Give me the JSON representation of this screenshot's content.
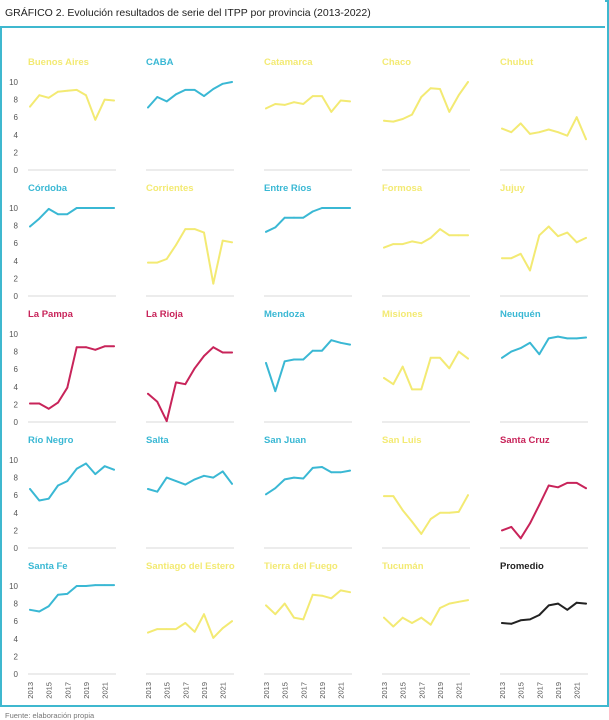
{
  "figure": {
    "title": "GRÁFICO 2. Evolución resultados de serie del ITPP por provincia (2013-2022)",
    "source": "Fuente: elaboración propia"
  },
  "colors": {
    "cyan": "#3ab8d4",
    "yellow": "#f3ea73",
    "magenta": "#c8245a",
    "black": "#222222",
    "frame": "#3fb8cf"
  },
  "chart_data": {
    "type": "line",
    "layout": "small-multiples",
    "rows": 5,
    "cols": 5,
    "ylim": [
      0,
      10
    ],
    "yticks": [
      "10",
      "8",
      "6",
      "4",
      "2",
      "0"
    ],
    "x": [
      2013,
      2014,
      2015,
      2016,
      2017,
      2018,
      2019,
      2020,
      2021,
      2022
    ],
    "xticks": [
      "2013",
      "2015",
      "2017",
      "2019",
      "2021"
    ],
    "grid": false,
    "panels": [
      {
        "name": "Buenos Aires",
        "color": "yellow",
        "values": [
          7.2,
          8.5,
          8.2,
          8.9,
          9.0,
          9.1,
          8.5,
          5.7,
          8.0,
          7.9
        ]
      },
      {
        "name": "CABA",
        "color": "cyan",
        "values": [
          7.1,
          8.3,
          7.8,
          8.6,
          9.1,
          9.1,
          8.4,
          9.2,
          9.8,
          10.0
        ]
      },
      {
        "name": "Catamarca",
        "color": "yellow",
        "values": [
          7.0,
          7.5,
          7.4,
          7.7,
          7.5,
          8.4,
          8.4,
          6.6,
          7.9,
          7.8
        ]
      },
      {
        "name": "Chaco",
        "color": "yellow",
        "values": [
          5.6,
          5.5,
          5.8,
          6.3,
          8.3,
          9.3,
          9.2,
          6.6,
          8.5,
          10.0
        ]
      },
      {
        "name": "Chubut",
        "color": "yellow",
        "values": [
          4.7,
          4.3,
          5.3,
          4.1,
          4.3,
          4.6,
          4.3,
          3.9,
          6.0,
          3.5
        ]
      },
      {
        "name": "Córdoba",
        "color": "cyan",
        "values": [
          7.9,
          8.8,
          9.9,
          9.3,
          9.3,
          10.0,
          10.0,
          10.0,
          10.0,
          10.0
        ]
      },
      {
        "name": "Corrientes",
        "color": "yellow",
        "values": [
          3.8,
          3.8,
          4.2,
          5.8,
          7.6,
          7.6,
          7.2,
          1.4,
          6.3,
          6.1
        ]
      },
      {
        "name": "Entre Ríos",
        "color": "cyan",
        "values": [
          7.3,
          7.8,
          8.9,
          8.9,
          8.9,
          9.6,
          10.0,
          10.0,
          10.0,
          10.0
        ]
      },
      {
        "name": "Formosa",
        "color": "yellow",
        "values": [
          5.5,
          5.9,
          5.9,
          6.2,
          6.0,
          6.6,
          7.6,
          6.9,
          6.9,
          6.9
        ]
      },
      {
        "name": "Jujuy",
        "color": "yellow",
        "values": [
          4.3,
          4.3,
          4.8,
          2.9,
          6.9,
          7.9,
          6.8,
          7.2,
          6.1,
          6.6
        ]
      },
      {
        "name": "La Pampa",
        "color": "magenta",
        "values": [
          2.1,
          2.1,
          1.5,
          2.2,
          3.9,
          8.5,
          8.5,
          8.2,
          8.6,
          8.6
        ]
      },
      {
        "name": "La Rioja",
        "color": "magenta",
        "values": [
          3.2,
          2.3,
          0.1,
          4.5,
          4.3,
          6.1,
          7.5,
          8.5,
          7.9,
          7.9
        ]
      },
      {
        "name": "Mendoza",
        "color": "cyan",
        "values": [
          6.7,
          3.5,
          6.9,
          7.1,
          7.1,
          8.1,
          8.1,
          9.3,
          9.0,
          8.8
        ]
      },
      {
        "name": "Misiones",
        "color": "yellow",
        "values": [
          5.0,
          4.3,
          6.3,
          3.7,
          3.7,
          7.3,
          7.3,
          6.1,
          8.0,
          7.2
        ]
      },
      {
        "name": "Neuquén",
        "color": "cyan",
        "values": [
          7.3,
          8.0,
          8.4,
          9.0,
          7.7,
          9.5,
          9.7,
          9.5,
          9.5,
          9.6
        ]
      },
      {
        "name": "Río Negro",
        "color": "cyan",
        "values": [
          6.7,
          5.4,
          5.6,
          7.1,
          7.6,
          9.0,
          9.6,
          8.4,
          9.3,
          8.9
        ]
      },
      {
        "name": "Salta",
        "color": "cyan",
        "values": [
          6.7,
          6.4,
          8.0,
          7.6,
          7.2,
          7.8,
          8.2,
          8.0,
          8.7,
          7.3
        ]
      },
      {
        "name": "San Juan",
        "color": "cyan",
        "values": [
          6.1,
          6.8,
          7.8,
          8.0,
          7.9,
          9.1,
          9.2,
          8.6,
          8.6,
          8.8
        ]
      },
      {
        "name": "San Luis",
        "color": "yellow",
        "values": [
          5.9,
          5.9,
          4.3,
          3.0,
          1.6,
          3.3,
          4.0,
          4.0,
          4.1,
          6.0
        ]
      },
      {
        "name": "Santa Cruz",
        "color": "magenta",
        "values": [
          2.0,
          2.4,
          1.1,
          2.8,
          4.9,
          7.1,
          6.9,
          7.4,
          7.4,
          6.8
        ]
      },
      {
        "name": "Santa Fe",
        "color": "cyan",
        "values": [
          7.3,
          7.1,
          7.7,
          9.0,
          9.1,
          10.0,
          10.0,
          10.1,
          10.1,
          10.1
        ]
      },
      {
        "name": "Santiago del Estero",
        "color": "yellow",
        "values": [
          4.7,
          5.1,
          5.1,
          5.1,
          5.8,
          4.8,
          6.8,
          4.1,
          5.2,
          6.0
        ]
      },
      {
        "name": "Tierra del Fuego",
        "color": "yellow",
        "values": [
          7.8,
          6.8,
          8.0,
          6.4,
          6.2,
          9.0,
          8.9,
          8.6,
          9.5,
          9.3
        ]
      },
      {
        "name": "Tucumán",
        "color": "yellow",
        "values": [
          6.4,
          5.4,
          6.4,
          5.8,
          6.4,
          5.6,
          7.5,
          8.0,
          8.2,
          8.4
        ]
      },
      {
        "name": "Promedio",
        "color": "black",
        "values": [
          5.8,
          5.7,
          6.1,
          6.2,
          6.7,
          7.8,
          8.0,
          7.3,
          8.1,
          8.0
        ]
      }
    ]
  }
}
